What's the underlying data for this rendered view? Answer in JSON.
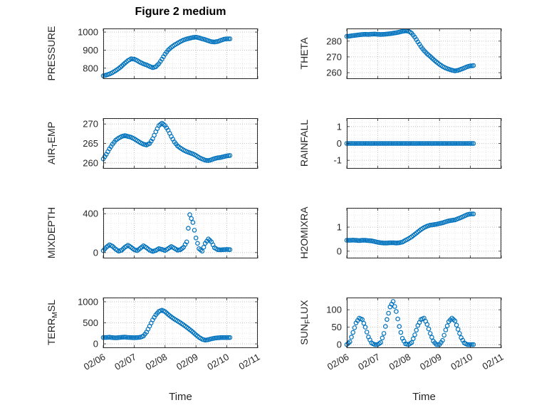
{
  "title": "Figure 2 medium",
  "xlabel": "Time",
  "marker_color": "#0072BD",
  "time_days": [
    6,
    6.1,
    6.2,
    6.3,
    6.4,
    6.5,
    6.6,
    6.7,
    6.8,
    6.9,
    7,
    7.1,
    7.2,
    7.3,
    7.4,
    7.5,
    7.6,
    7.7,
    7.8,
    7.9,
    8,
    8.1,
    8.2,
    8.3,
    8.4,
    8.5,
    8.6,
    8.7,
    8.8,
    8.9,
    9,
    9.1,
    9.2,
    9.3,
    9.4,
    9.5,
    9.6,
    9.7,
    9.8,
    9.9,
    10,
    10.1
  ],
  "chart_data": [
    {
      "type": "scatter",
      "ylabel": {
        "pre": "PRESSURE",
        "sub": "",
        "post": ""
      },
      "xlim": [
        6,
        11
      ],
      "ylim": [
        740,
        1020
      ],
      "xticks": [
        6,
        7,
        8,
        9,
        10,
        11
      ],
      "xtick_labels": [
        "02/06",
        "02/07",
        "02/08",
        "02/09",
        "02/10",
        "02/11"
      ],
      "yticks": [
        800,
        900,
        1000
      ],
      "ytick_labels": [
        "800",
        "900",
        "1000"
      ],
      "y": [
        758,
        762,
        768,
        776,
        786,
        798,
        812,
        828,
        842,
        852,
        850,
        842,
        832,
        824,
        818,
        810,
        803,
        808,
        825,
        850,
        878,
        900,
        916,
        928,
        938,
        948,
        956,
        962,
        966,
        970,
        972,
        968,
        963,
        958,
        952,
        947,
        945,
        948,
        954,
        960,
        963,
        963
      ]
    },
    {
      "type": "scatter",
      "ylabel": {
        "pre": "THETA",
        "sub": "",
        "post": ""
      },
      "xlim": [
        6,
        11
      ],
      "ylim": [
        256,
        288
      ],
      "xticks": [
        6,
        7,
        8,
        9,
        10,
        11
      ],
      "xtick_labels": [
        "02/06",
        "02/07",
        "02/08",
        "02/09",
        "02/10",
        "02/11"
      ],
      "yticks": [
        260,
        270,
        280
      ],
      "ytick_labels": [
        "260",
        "270",
        "280"
      ],
      "y": [
        283,
        283.2,
        283.5,
        283.7,
        284,
        284.2,
        284.3,
        284.2,
        284.4,
        284.5,
        284.3,
        284.2,
        284.3,
        284.5,
        284.7,
        285,
        285.3,
        285.7,
        286.2,
        286.5,
        286.3,
        285,
        282.5,
        279.5,
        276.5,
        274,
        272,
        270.3,
        268.5,
        266.8,
        265.3,
        264,
        263,
        262.2,
        261.6,
        261.2,
        261.5,
        262.2,
        263,
        263.8,
        264.3,
        264.5
      ]
    },
    {
      "type": "scatter",
      "ylabel": {
        "pre": "AIR",
        "sub": "T",
        "post": "EMP"
      },
      "xlim": [
        6,
        11
      ],
      "ylim": [
        258.5,
        271.5
      ],
      "xticks": [
        6,
        7,
        8,
        9,
        10,
        11
      ],
      "xtick_labels": [
        "02/06",
        "02/07",
        "02/08",
        "02/09",
        "02/10",
        "02/11"
      ],
      "yticks": [
        260,
        265,
        270
      ],
      "ytick_labels": [
        "260",
        "265",
        "270"
      ],
      "y": [
        261,
        262.2,
        263.6,
        264.8,
        265.8,
        266.4,
        266.8,
        267,
        266.8,
        266.6,
        266.2,
        265.7,
        265.2,
        264.8,
        264.6,
        265,
        266.2,
        268,
        269.6,
        270.2,
        269.6,
        268.4,
        266.8,
        265.4,
        264.4,
        263.8,
        263.3,
        262.9,
        262.6,
        262.3,
        261.9,
        261.4,
        261,
        260.7,
        260.6,
        260.8,
        261.1,
        261.3,
        261.4,
        261.6,
        261.8,
        261.9
      ]
    },
    {
      "type": "scatter",
      "ylabel": {
        "pre": "RAINFALL",
        "sub": "",
        "post": ""
      },
      "xlim": [
        6,
        11
      ],
      "ylim": [
        -1.5,
        1.5
      ],
      "xticks": [
        6,
        7,
        8,
        9,
        10,
        11
      ],
      "xtick_labels": [
        "02/06",
        "02/07",
        "02/08",
        "02/09",
        "02/10",
        "02/11"
      ],
      "yticks": [
        -1,
        0,
        1
      ],
      "ytick_labels": [
        "-1",
        "0",
        "1"
      ],
      "y": [
        0,
        0,
        0,
        0,
        0,
        0,
        0,
        0,
        0,
        0,
        0,
        0,
        0,
        0,
        0,
        0,
        0,
        0,
        0,
        0,
        0,
        0,
        0,
        0,
        0,
        0,
        0,
        0,
        0,
        0,
        0,
        0,
        0,
        0,
        0,
        0,
        0,
        0,
        0,
        0,
        0,
        0
      ]
    },
    {
      "type": "scatter",
      "ylabel": {
        "pre": "MIXDEPTH",
        "sub": "",
        "post": ""
      },
      "xlim": [
        6,
        11
      ],
      "ylim": [
        -60,
        460
      ],
      "xticks": [
        6,
        7,
        8,
        9,
        10,
        11
      ],
      "xtick_labels": [
        "02/06",
        "02/07",
        "02/08",
        "02/09",
        "02/10",
        "02/11"
      ],
      "yticks": [
        0,
        400
      ],
      "ytick_labels": [
        "0",
        "400"
      ],
      "y": [
        20,
        55,
        80,
        65,
        35,
        15,
        25,
        55,
        75,
        55,
        30,
        20,
        45,
        70,
        50,
        25,
        12,
        22,
        40,
        32,
        22,
        40,
        62,
        45,
        25,
        30,
        55,
        110,
        390,
        310,
        150,
        40,
        15,
        95,
        140,
        110,
        50,
        30,
        28,
        30,
        32,
        30
      ]
    },
    {
      "type": "scatter",
      "ylabel": {
        "pre": "H2OMIXRA",
        "sub": "",
        "post": ""
      },
      "xlim": [
        6,
        11
      ],
      "ylim": [
        -0.3,
        1.8
      ],
      "xticks": [
        6,
        7,
        8,
        9,
        10,
        11
      ],
      "xtick_labels": [
        "02/06",
        "02/07",
        "02/08",
        "02/09",
        "02/10",
        "02/11"
      ],
      "yticks": [
        0,
        1
      ],
      "ytick_labels": [
        "0",
        "1"
      ],
      "y": [
        0.45,
        0.45,
        0.46,
        0.45,
        0.44,
        0.45,
        0.45,
        0.44,
        0.43,
        0.4,
        0.37,
        0.35,
        0.34,
        0.34,
        0.35,
        0.35,
        0.34,
        0.35,
        0.38,
        0.45,
        0.52,
        0.6,
        0.7,
        0.8,
        0.9,
        0.98,
        1.04,
        1.08,
        1.1,
        1.12,
        1.15,
        1.18,
        1.22,
        1.26,
        1.28,
        1.3,
        1.35,
        1.4,
        1.46,
        1.52,
        1.55,
        1.55
      ]
    },
    {
      "type": "scatter",
      "ylabel": {
        "pre": "TERR",
        "sub": "M",
        "post": "SL"
      },
      "xlim": [
        6,
        11
      ],
      "ylim": [
        -100,
        1100
      ],
      "xticks": [
        6,
        7,
        8,
        9,
        10,
        11
      ],
      "xtick_labels": [
        "02/06",
        "02/07",
        "02/08",
        "02/09",
        "02/10",
        "02/11"
      ],
      "yticks": [
        0,
        500,
        1000
      ],
      "ytick_labels": [
        "0",
        "500",
        "1000"
      ],
      "y": [
        150,
        152,
        158,
        150,
        145,
        150,
        157,
        160,
        154,
        150,
        148,
        150,
        158,
        185,
        280,
        420,
        570,
        690,
        770,
        800,
        765,
        700,
        640,
        590,
        545,
        500,
        450,
        395,
        340,
        280,
        215,
        155,
        110,
        90,
        100,
        120,
        135,
        145,
        150,
        150,
        150,
        150
      ]
    },
    {
      "type": "scatter",
      "ylabel": {
        "pre": "SUN",
        "sub": "F",
        "post": "LUX"
      },
      "xlim": [
        6,
        11
      ],
      "ylim": [
        -10,
        135
      ],
      "xticks": [
        6,
        7,
        8,
        9,
        10,
        11
      ],
      "xtick_labels": [
        "02/06",
        "02/07",
        "02/08",
        "02/09",
        "02/10",
        "02/11"
      ],
      "yticks": [
        0,
        50,
        100
      ],
      "ytick_labels": [
        "0",
        "50",
        "100"
      ],
      "y": [
        0,
        8,
        35,
        62,
        76,
        72,
        50,
        22,
        5,
        0,
        0,
        6,
        32,
        72,
        108,
        124,
        95,
        52,
        18,
        2,
        0,
        6,
        28,
        55,
        72,
        76,
        58,
        32,
        10,
        0,
        0,
        12,
        42,
        66,
        76,
        68,
        44,
        20,
        5,
        0,
        0,
        0
      ]
    }
  ]
}
